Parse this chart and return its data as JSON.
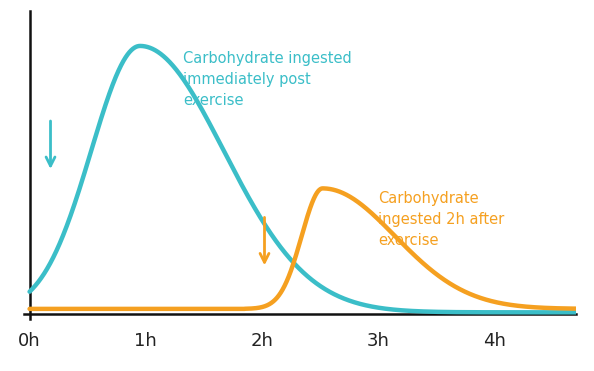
{
  "blue_color": "#3BBEC8",
  "orange_color": "#F5A020",
  "label_blue": "Carbohydrate ingested\nimmediately post\nexercise",
  "label_orange": "Carbohydrate\ningested 2h after\nexercise",
  "x_ticks": [
    0,
    1,
    2,
    3,
    4
  ],
  "x_tick_labels": [
    "0h",
    "1h",
    "2h",
    "3h",
    "4h"
  ],
  "xlim": [
    -0.05,
    4.7
  ],
  "ylim": [
    -0.02,
    1.13
  ],
  "line_width": 3.2,
  "background_color": "#ffffff"
}
